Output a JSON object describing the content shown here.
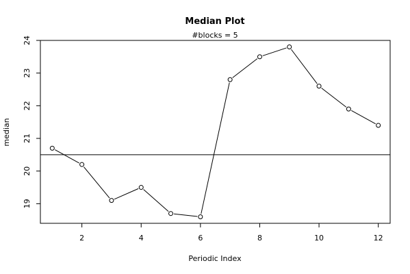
{
  "chart_data": {
    "type": "line",
    "title": "Median Plot",
    "subtitle": "#blocks =  5",
    "xlabel": "Periodic Index",
    "ylabel": "median",
    "x": [
      1,
      2,
      3,
      4,
      5,
      6,
      7,
      8,
      9,
      10,
      11,
      12
    ],
    "values": [
      20.7,
      20.2,
      19.1,
      19.5,
      18.7,
      18.6,
      22.8,
      23.5,
      23.8,
      22.6,
      21.9,
      21.4
    ],
    "reference_line": 20.5,
    "xticks": [
      2,
      4,
      6,
      8,
      10,
      12
    ],
    "yticks": [
      19,
      20,
      21,
      22,
      23,
      24
    ],
    "xlim": [
      0.6,
      12.4
    ],
    "ylim": [
      18.4,
      24.0
    ],
    "grid": false,
    "marker": "open-circle"
  }
}
